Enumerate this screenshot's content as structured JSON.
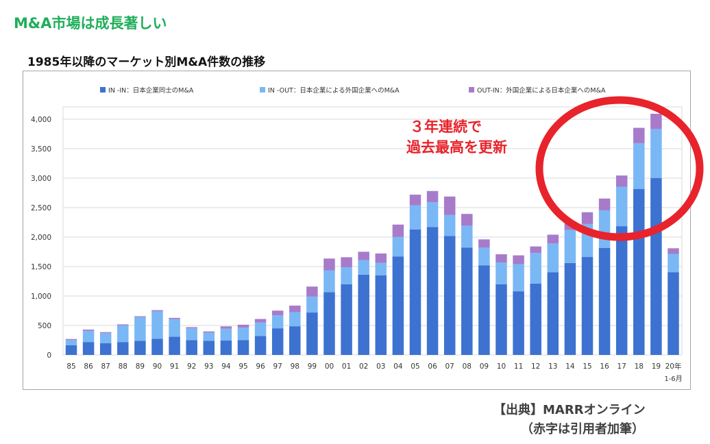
{
  "page": {
    "heading": "M&A市場は成長著しい",
    "subheading": "1985年以降のマーケット別M&A件数の推移",
    "callout_line1": "３年連続で",
    "callout_line2": "過去最高を更新",
    "source_line1": "【出典】MARRオンライン",
    "source_line2": "（赤字は引用者加筆）"
  },
  "colors": {
    "in_in": "#3d72d1",
    "in_out": "#7ab8f5",
    "out_in": "#a77bca",
    "highlight": "#e8232b",
    "grid": "#d9d9d9"
  },
  "chart_data": {
    "type": "bar",
    "stacked": true,
    "title": "1985年以降のマーケット別M&A件数の推移",
    "xlabel": "",
    "ylabel": "",
    "ylim": [
      0,
      4000
    ],
    "yticks": [
      0,
      500,
      1000,
      1500,
      2000,
      2500,
      3000,
      3500,
      4000
    ],
    "ytick_labels": [
      "0",
      "500",
      "1,000",
      "1,500",
      "2,000",
      "2,500",
      "3,000",
      "3,500",
      "4,000"
    ],
    "categories": [
      "85",
      "86",
      "87",
      "88",
      "89",
      "90",
      "91",
      "92",
      "93",
      "94",
      "95",
      "96",
      "97",
      "98",
      "99",
      "00",
      "01",
      "02",
      "03",
      "04",
      "05",
      "06",
      "07",
      "08",
      "09",
      "10",
      "11",
      "12",
      "13",
      "14",
      "15",
      "16",
      "17",
      "18",
      "19",
      "20年"
    ],
    "category_sublabel": {
      "index": 35,
      "text": "1-6月"
    },
    "legend_position": "top",
    "series": [
      {
        "name": "IN -IN：日本企業同士のM&A",
        "values": [
          163,
          219,
          198,
          219,
          240,
          274,
          309,
          251,
          239,
          245,
          253,
          320,
          452,
          487,
          720,
          1066,
          1198,
          1361,
          1352,
          1672,
          2130,
          2172,
          2018,
          1823,
          1521,
          1198,
          1080,
          1211,
          1401,
          1560,
          1662,
          1814,
          2185,
          2814,
          3003,
          1405
        ]
      },
      {
        "name": "IN -OUT：日本企業による外国企業へのM&A",
        "values": [
          89,
          190,
          172,
          284,
          402,
          466,
          300,
          200,
          140,
          200,
          210,
          230,
          220,
          240,
          270,
          370,
          290,
          250,
          210,
          330,
          410,
          420,
          360,
          370,
          300,
          370,
          460,
          520,
          490,
          560,
          560,
          640,
          670,
          780,
          830,
          310
        ]
      },
      {
        "name": "OUT-IN：外国企業による日本企業へのM&A",
        "values": [
          18,
          21,
          17,
          16,
          15,
          20,
          20,
          20,
          20,
          40,
          50,
          60,
          80,
          110,
          170,
          200,
          170,
          140,
          160,
          210,
          180,
          190,
          310,
          200,
          140,
          140,
          150,
          110,
          150,
          150,
          200,
          200,
          190,
          260,
          260,
          95
        ]
      }
    ]
  }
}
